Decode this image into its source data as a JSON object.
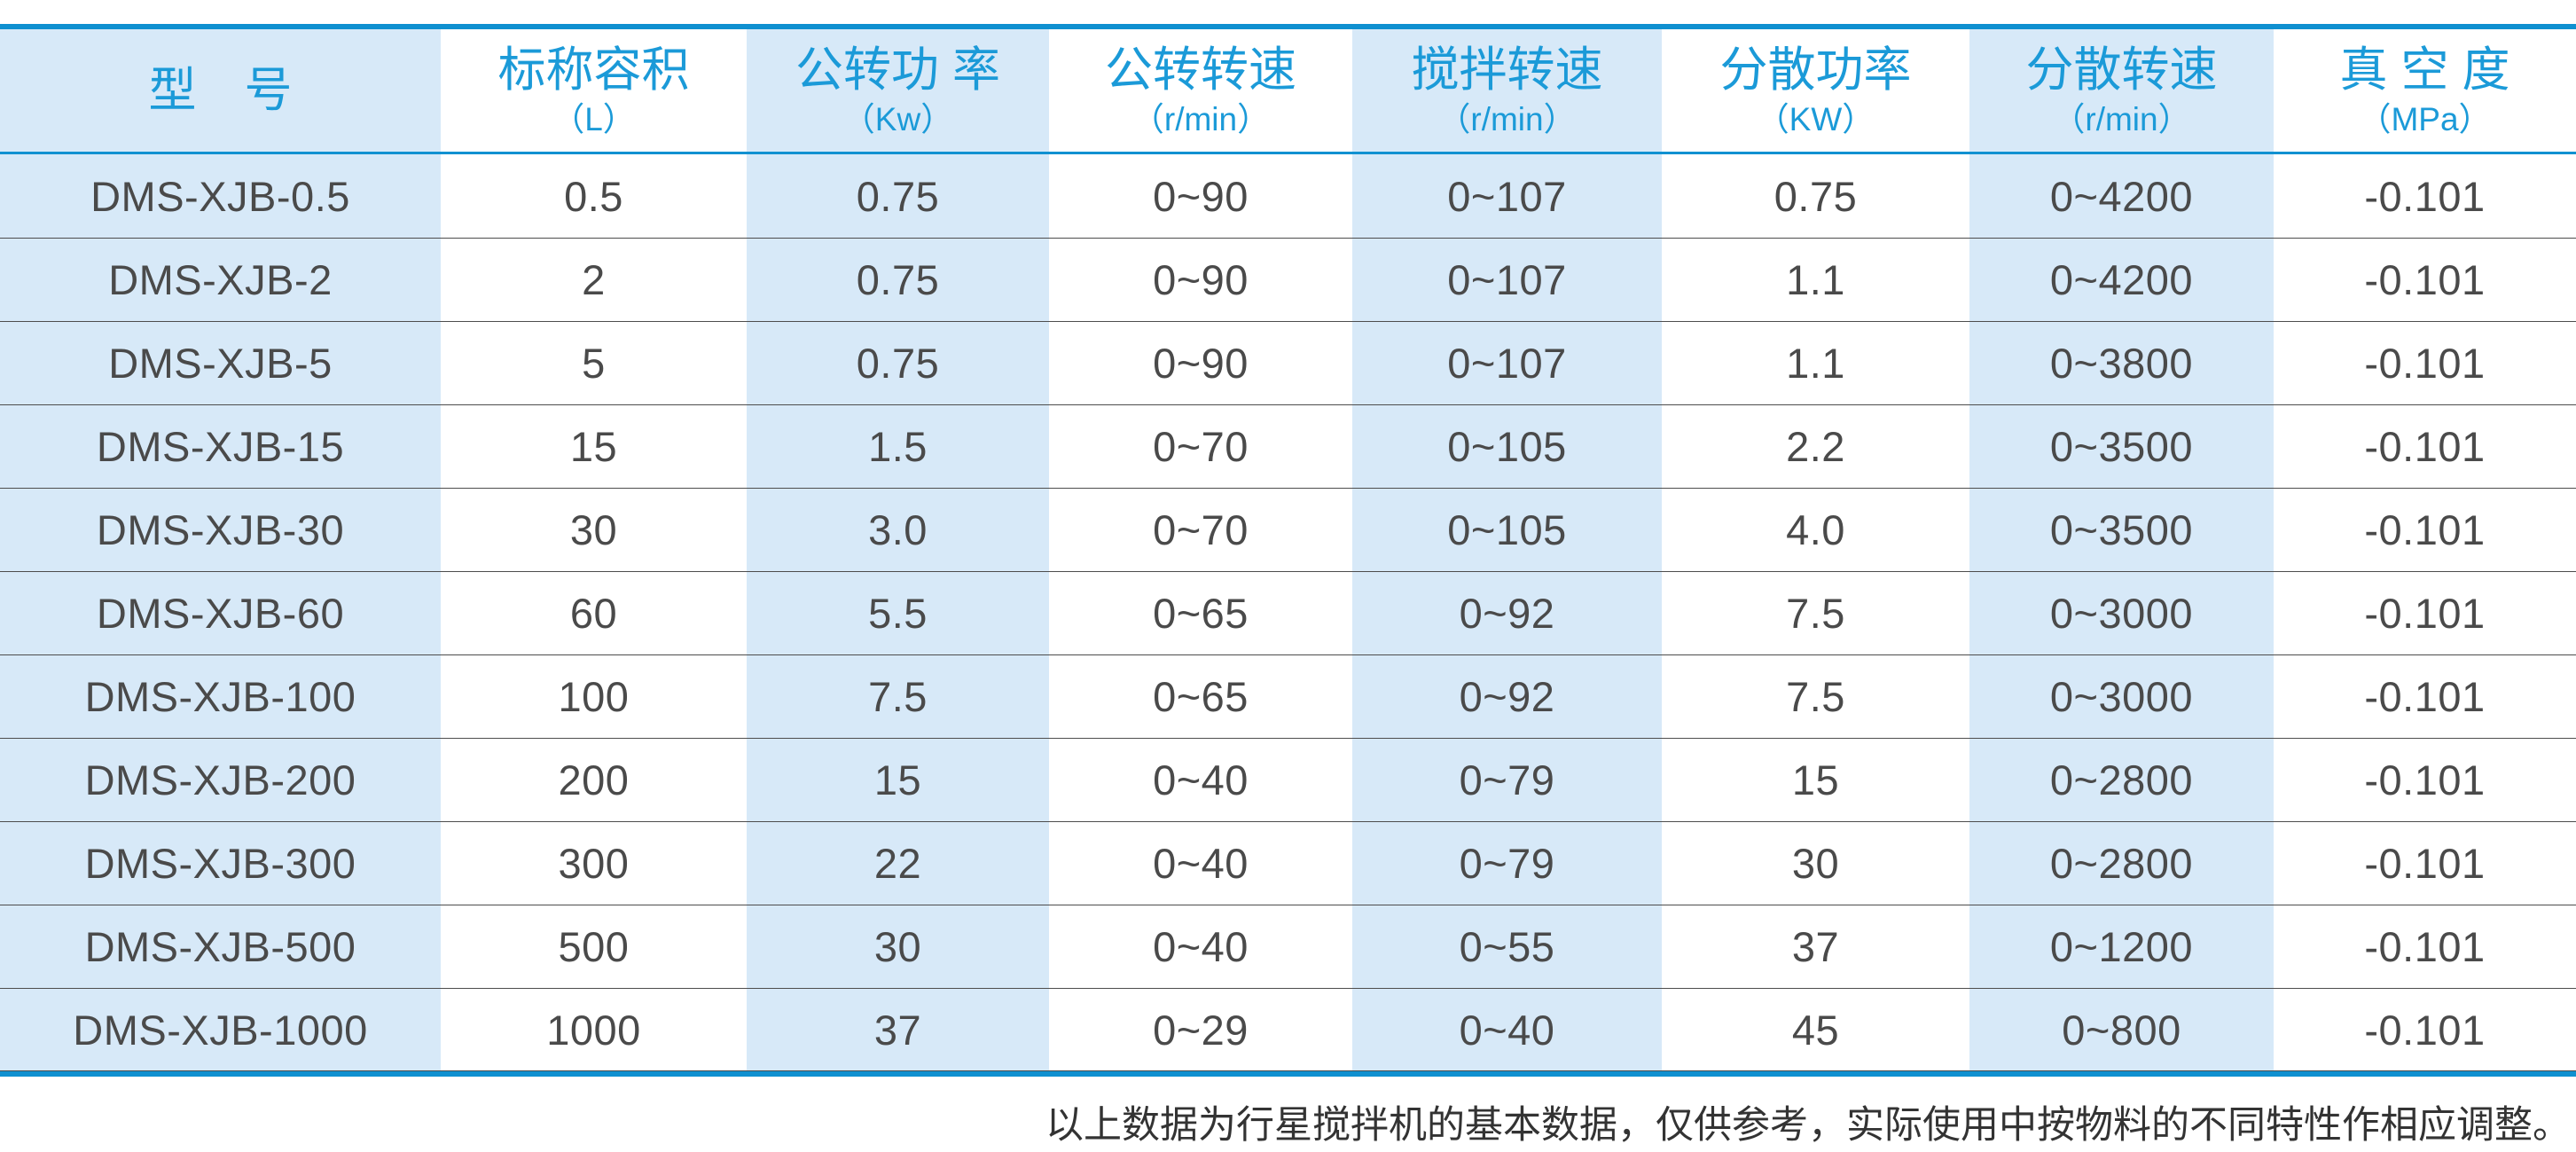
{
  "colors": {
    "accent_blue": "#0f90d0",
    "header_text_blue": "#1b9ad8",
    "stripe_blue": "#d7e9f8",
    "row_line_gray": "#4d4d4d",
    "cell_text": "#4a4a4a"
  },
  "table": {
    "columns": [
      {
        "title": "型　号",
        "unit": ""
      },
      {
        "title": "标称容积",
        "unit": "（L）"
      },
      {
        "title": "公转功 率",
        "unit": "（Kw）"
      },
      {
        "title": "公转转速",
        "unit": "（r/min）"
      },
      {
        "title": "搅拌转速",
        "unit": "（r/min）"
      },
      {
        "title": "分散功率",
        "unit": "（KW）"
      },
      {
        "title": "分散转速",
        "unit": "（r/min）"
      },
      {
        "title": "真 空 度",
        "unit": "（MPa）"
      }
    ],
    "rows": [
      [
        "DMS-XJB-0.5",
        "0.5",
        "0.75",
        "0~90",
        "0~107",
        "0.75",
        "0~4200",
        "-0.101"
      ],
      [
        "DMS-XJB-2",
        "2",
        "0.75",
        "0~90",
        "0~107",
        "1.1",
        "0~4200",
        "-0.101"
      ],
      [
        "DMS-XJB-5",
        "5",
        "0.75",
        "0~90",
        "0~107",
        "1.1",
        "0~3800",
        "-0.101"
      ],
      [
        "DMS-XJB-15",
        "15",
        "1.5",
        "0~70",
        "0~105",
        "2.2",
        "0~3500",
        "-0.101"
      ],
      [
        "DMS-XJB-30",
        "30",
        "3.0",
        "0~70",
        "0~105",
        "4.0",
        "0~3500",
        "-0.101"
      ],
      [
        "DMS-XJB-60",
        "60",
        "5.5",
        "0~65",
        "0~92",
        "7.5",
        "0~3000",
        "-0.101"
      ],
      [
        "DMS-XJB-100",
        "100",
        "7.5",
        "0~65",
        "0~92",
        "7.5",
        "0~3000",
        "-0.101"
      ],
      [
        "DMS-XJB-200",
        "200",
        "15",
        "0~40",
        "0~79",
        "15",
        "0~2800",
        "-0.101"
      ],
      [
        "DMS-XJB-300",
        "300",
        "22",
        "0~40",
        "0~79",
        "30",
        "0~2800",
        "-0.101"
      ],
      [
        "DMS-XJB-500",
        "500",
        "30",
        "0~40",
        "0~55",
        "37",
        "0~1200",
        "-0.101"
      ],
      [
        "DMS-XJB-1000",
        "1000",
        "37",
        "0~29",
        "0~40",
        "45",
        "0~800",
        "-0.101"
      ]
    ]
  },
  "footer": {
    "note": "以上数据为行星搅拌机的基本数据，仅供参考，实际使用中按物料的不同特性作相应调整。"
  }
}
